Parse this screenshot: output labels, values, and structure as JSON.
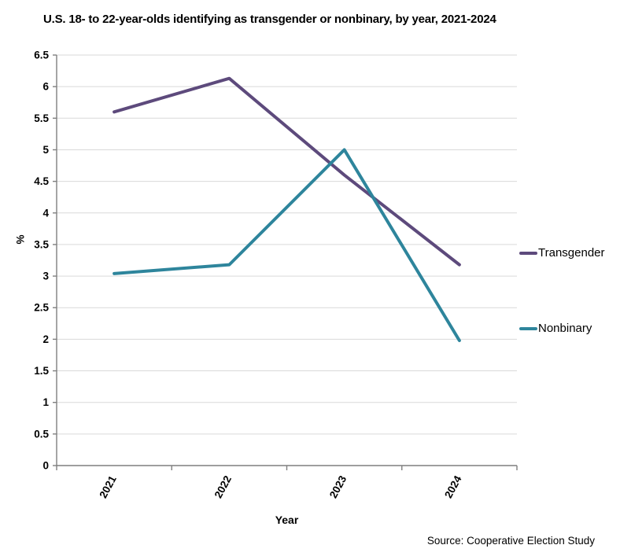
{
  "chart_data": {
    "type": "line",
    "title": "U.S. 18- to 22-year-olds identifying as transgender or nonbinary, by year, 2021-2024",
    "categories": [
      "2021",
      "2022",
      "2023",
      "2024"
    ],
    "series": [
      {
        "name": "Transgender",
        "color": "#5D4A7C",
        "values": [
          5.6,
          6.13,
          4.6,
          3.18
        ]
      },
      {
        "name": "Nonbinary",
        "color": "#2E859C",
        "values": [
          3.04,
          3.18,
          5.0,
          1.98
        ]
      }
    ],
    "xlabel": "Year",
    "ylabel": "%",
    "ylim": [
      0,
      6.5
    ],
    "ytick_step": 0.5,
    "grid": "horizontal",
    "legend_position": "right"
  },
  "source_note": "Source: Cooperative Election Study",
  "colors": {
    "gridline": "#d9d9d9",
    "axis": "#7f7f7f",
    "tick_label": "#000000"
  }
}
